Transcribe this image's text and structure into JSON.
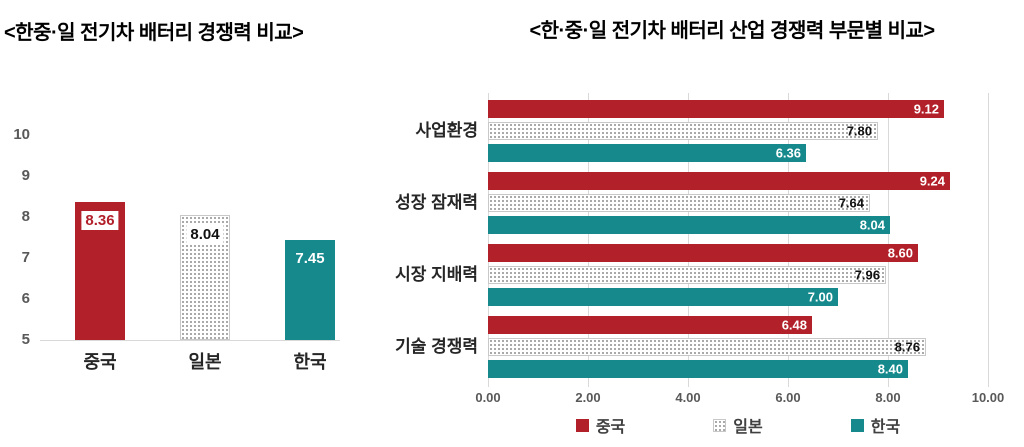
{
  "colors": {
    "china": "#b2202a",
    "korea": "#15898c",
    "japan_fill": "#ffffff",
    "japan_dot": "#9a9a9a",
    "japan_border": "#c8c8c8",
    "grid": "#d9d9d9",
    "axis_text": "#595959",
    "category_text": "#262626",
    "title_text": "#000000"
  },
  "chart_data": [
    {
      "type": "bar",
      "title": "<한중·일 전기차 배터리 경쟁력 비교>",
      "categories": [
        "중국",
        "일본",
        "한국"
      ],
      "series_keys": [
        "china",
        "japan",
        "korea"
      ],
      "values": [
        8.36,
        8.04,
        7.45
      ],
      "value_labels": [
        "8.36",
        "8.04",
        "7.45"
      ],
      "y_ticks": [
        10,
        9,
        8,
        7,
        6,
        5
      ],
      "ylim": [
        5,
        10
      ],
      "grid": false,
      "legend_position": "none"
    },
    {
      "type": "horizontal-bar",
      "title": "<한·중·일 전기차 배터리 산업 경쟁력 부문별 비교>",
      "categories": [
        "사업환경",
        "성장 잠재력",
        "시장 지배력",
        "기술 경쟁력"
      ],
      "series": [
        {
          "name": "중국",
          "key": "china",
          "values": [
            9.12,
            9.24,
            8.6,
            6.48
          ],
          "value_labels": [
            "9.12",
            "9.24",
            "8.60",
            "6.48"
          ]
        },
        {
          "name": "일본",
          "key": "japan",
          "values": [
            7.8,
            7.64,
            7.96,
            8.76
          ],
          "value_labels": [
            "7.80",
            "7.64",
            "7.96",
            "8.76"
          ]
        },
        {
          "name": "한국",
          "key": "korea",
          "values": [
            6.36,
            8.04,
            7.0,
            8.4
          ],
          "value_labels": [
            "6.36",
            "8.04",
            "7.00",
            "8.40"
          ]
        }
      ],
      "x_ticks": [
        "0.00",
        "2.00",
        "4.00",
        "6.00",
        "8.00",
        "10.00"
      ],
      "xlim": [
        0,
        10
      ],
      "grid": true,
      "legend_position": "bottom"
    }
  ]
}
